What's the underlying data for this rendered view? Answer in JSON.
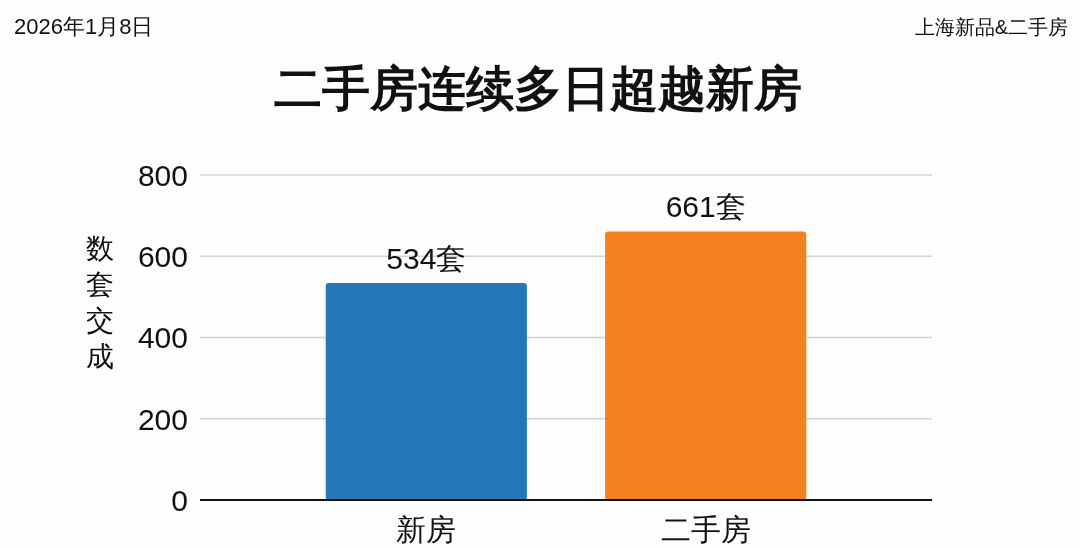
{
  "chart_data": {
    "type": "bar",
    "title": "二手房连续多日超越新房",
    "ylabel": "数套交成",
    "annotations": [
      "2026年1月8日",
      "上海新品&二手房"
    ],
    "categories": [
      "新房",
      "二手房"
    ],
    "values": [
      534,
      661
    ],
    "colors": [
      "#2477b9",
      "#f5801f"
    ],
    "value_labels": [
      "534套",
      "661套"
    ],
    "ylim": [
      0,
      800
    ],
    "yticks": [
      0,
      200,
      400,
      600,
      800
    ],
    "grid": "y"
  }
}
